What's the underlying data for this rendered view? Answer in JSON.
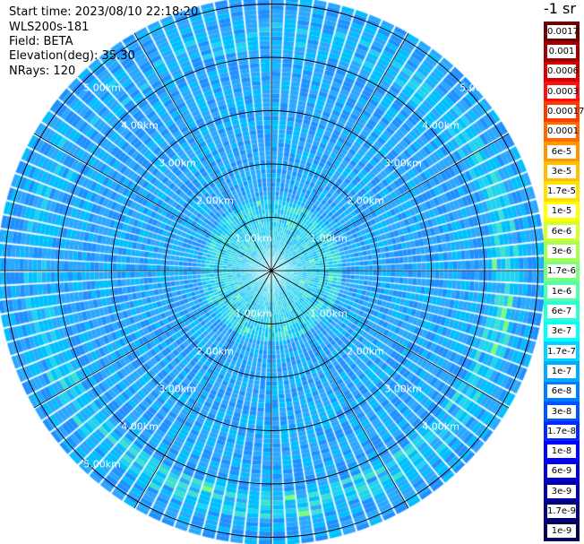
{
  "info": {
    "start_time": "Start time: 2023/08/10 22:18:20",
    "instrument": "WLS200s-181",
    "field": "Field: BETA",
    "elevation": "Elevation(deg): 35.30",
    "nrays": "NRays: 120"
  },
  "colorbar": {
    "unit": "-1 sr",
    "labels": [
      "0.0017",
      "0.001",
      "0.0006",
      "0.0003",
      "0.00017",
      "0.0001",
      "6e-5",
      "3e-5",
      "1.7e-5",
      "1e-5",
      "6e-6",
      "3e-6",
      "1.7e-6",
      "1e-6",
      "6e-7",
      "3e-7",
      "1.7e-7",
      "1e-7",
      "6e-8",
      "3e-8",
      "1.7e-8",
      "1e-8",
      "6e-9",
      "3e-9",
      "1.7e-9",
      "1e-9"
    ],
    "colors": [
      "#6a0000",
      "#a00000",
      "#d40000",
      "#ff1010",
      "#ff3c00",
      "#ff6a00",
      "#ff9600",
      "#ffbe00",
      "#ffe100",
      "#ffff00",
      "#d4ff2a",
      "#a8ff54",
      "#7cff7c",
      "#54ffaa",
      "#2affd4",
      "#00ffff",
      "#00d4ff",
      "#00aaff",
      "#007cff",
      "#0054ff",
      "#002aff",
      "#0000ff",
      "#0000d4",
      "#0000aa",
      "#00007c",
      "#000054"
    ]
  },
  "range_labels": {
    "r1": "1.00km",
    "r2": "2.00km",
    "r3": "3.00km",
    "r4": "4.00km",
    "r5": "5.00km"
  },
  "chart_data": {
    "type": "heatmap",
    "title": "",
    "projection": "polar (PPI)",
    "rays": 120,
    "range_rings_km": [
      1,
      2,
      3,
      4,
      5
    ],
    "dominant_colors": [
      "#1e90ff",
      "#00bfff",
      "#40e0d0",
      "#7cfc00",
      "#1464ff"
    ],
    "features": [
      "Near-field cluster of higher backscatter (cyan) within about 1.5 km",
      "Partial ring of elevated backscatter (green-yellow) near 4.3–5.2 km, strongest toward east and south"
    ],
    "gridlines": true
  }
}
